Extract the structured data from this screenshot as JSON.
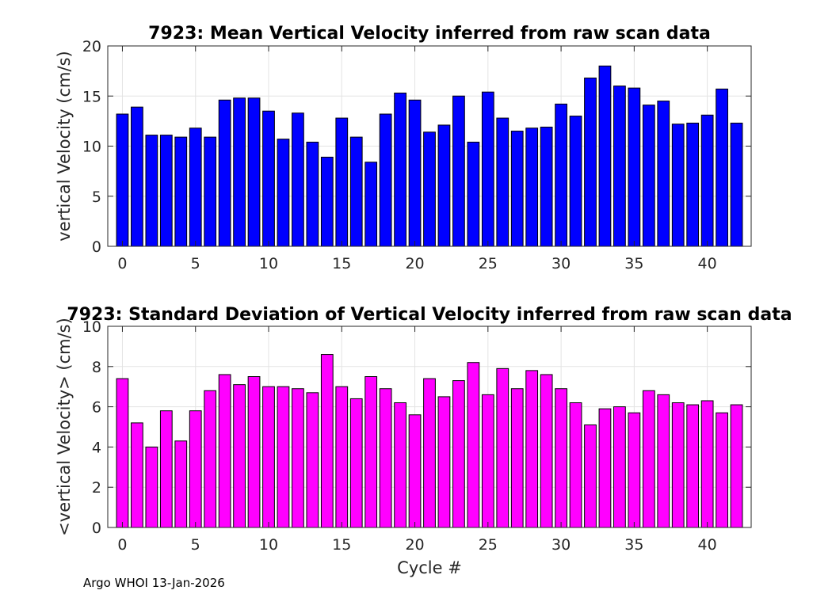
{
  "footer": "Argo WHOI 13-Jan-2026",
  "chart_data": [
    {
      "type": "bar",
      "title": "7923: Mean Vertical Velocity inferred from raw scan data",
      "xlabel": "",
      "ylabel": "vertical Velocity (cm/s)",
      "xlim": [
        -1,
        43
      ],
      "ylim": [
        0,
        20
      ],
      "xticks": [
        0,
        5,
        10,
        15,
        20,
        25,
        30,
        35,
        40
      ],
      "yticks": [
        0,
        5,
        10,
        15,
        20
      ],
      "grid": true,
      "bar_color": "#0000ff",
      "x": [
        0,
        1,
        2,
        3,
        4,
        5,
        6,
        7,
        8,
        9,
        10,
        11,
        12,
        13,
        14,
        15,
        16,
        17,
        18,
        19,
        20,
        21,
        22,
        23,
        24,
        25,
        26,
        27,
        28,
        29,
        30,
        31,
        32,
        33,
        34,
        35,
        36,
        37,
        38,
        39,
        40,
        41,
        42
      ],
      "values": [
        13.2,
        13.9,
        11.1,
        11.1,
        10.9,
        11.8,
        10.9,
        14.6,
        14.8,
        14.8,
        13.5,
        10.7,
        13.3,
        10.4,
        8.9,
        12.8,
        10.9,
        8.4,
        13.2,
        15.3,
        14.6,
        11.4,
        12.1,
        15.0,
        10.4,
        15.4,
        12.8,
        11.5,
        11.8,
        11.9,
        14.2,
        13.0,
        16.8,
        18.0,
        16.0,
        15.8,
        14.1,
        14.5,
        12.2,
        12.3,
        13.1,
        15.7,
        12.3
      ]
    },
    {
      "type": "bar",
      "title": "7923: Standard Deviation of Vertical Velocity inferred from raw scan data",
      "xlabel": "Cycle #",
      "ylabel": "<vertical Velocity> (cm/s)",
      "xlim": [
        -1,
        43
      ],
      "ylim": [
        0,
        10
      ],
      "xticks": [
        0,
        5,
        10,
        15,
        20,
        25,
        30,
        35,
        40
      ],
      "yticks": [
        0,
        2,
        4,
        6,
        8,
        10
      ],
      "grid": true,
      "bar_color": "#ff00ff",
      "x": [
        0,
        1,
        2,
        3,
        4,
        5,
        6,
        7,
        8,
        9,
        10,
        11,
        12,
        13,
        14,
        15,
        16,
        17,
        18,
        19,
        20,
        21,
        22,
        23,
        24,
        25,
        26,
        27,
        28,
        29,
        30,
        31,
        32,
        33,
        34,
        35,
        36,
        37,
        38,
        39,
        40,
        41,
        42
      ],
      "values": [
        7.4,
        5.2,
        4.0,
        5.8,
        4.3,
        5.8,
        6.8,
        7.6,
        7.1,
        7.5,
        7.0,
        7.0,
        6.9,
        6.7,
        8.6,
        7.0,
        6.4,
        7.5,
        6.9,
        6.2,
        5.6,
        7.4,
        6.5,
        7.3,
        8.2,
        6.6,
        7.9,
        6.9,
        7.8,
        7.6,
        6.9,
        6.2,
        5.1,
        5.9,
        6.0,
        5.7,
        6.8,
        6.6,
        6.2,
        6.1,
        6.3,
        5.7,
        6.1
      ]
    }
  ]
}
